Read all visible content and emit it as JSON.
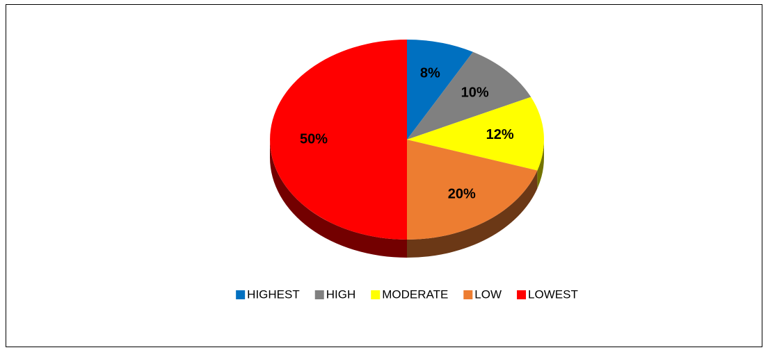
{
  "chart_data": {
    "type": "pie",
    "categories": [
      "HIGHEST",
      "HIGH",
      "MODERATE",
      "LOW",
      "LOWEST"
    ],
    "values": [
      8,
      10,
      12,
      20,
      50
    ],
    "value_labels": [
      "8%",
      "10%",
      "12%",
      "20%",
      "50%"
    ],
    "colors": [
      "#0070c0",
      "#808080",
      "#ffff00",
      "#ed7d31",
      "#ff0000"
    ],
    "legend": "bottom"
  }
}
